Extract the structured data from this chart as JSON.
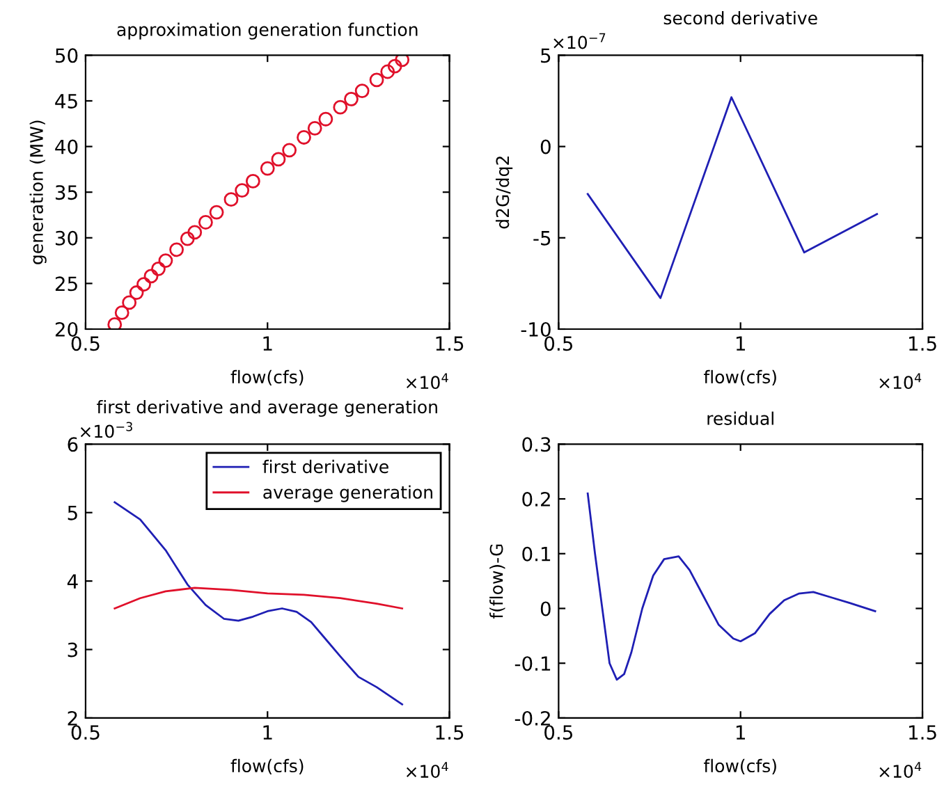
{
  "chart_data": [
    {
      "type": "scatter",
      "title": "approximation generation function",
      "xlabel": "flow(cfs)",
      "ylabel": "generation (MW)",
      "marker": "circle",
      "xlim": [
        0.5,
        1.5
      ],
      "ylim": [
        20,
        50
      ],
      "xticks": [
        0.5,
        1,
        1.5
      ],
      "yticks": [
        20,
        25,
        30,
        35,
        40,
        45,
        50
      ],
      "annotations": [
        "×10$^{4}$"
      ],
      "series": [
        {
          "color": "#e0102a",
          "x": [
            0.58,
            0.6,
            0.62,
            0.64,
            0.66,
            0.68,
            0.7,
            0.72,
            0.75,
            0.78,
            0.8,
            0.83,
            0.86,
            0.9,
            0.93,
            0.96,
            1.0,
            1.03,
            1.06,
            1.1,
            1.13,
            1.16,
            1.2,
            1.23,
            1.26,
            1.3,
            1.33,
            1.35,
            1.37
          ],
          "values": [
            20.5,
            21.8,
            22.9,
            24.0,
            24.9,
            25.8,
            26.6,
            27.5,
            28.7,
            29.9,
            30.6,
            31.7,
            32.8,
            34.2,
            35.2,
            36.2,
            37.6,
            38.6,
            39.6,
            41.0,
            42.0,
            43.0,
            44.3,
            45.2,
            46.1,
            47.3,
            48.2,
            48.8,
            49.5
          ]
        }
      ]
    },
    {
      "type": "line",
      "title": "second derivative",
      "xlabel": "flow(cfs)",
      "ylabel": "d2G/dq2",
      "xlim": [
        0.5,
        1.5
      ],
      "ylim": [
        -10,
        5
      ],
      "xticks": [
        0.5,
        1,
        1.5
      ],
      "yticks": [
        -10,
        -5,
        0,
        5
      ],
      "annotations": [
        "×10$^{4}$",
        "×10$^{−7}$"
      ],
      "series": [
        {
          "color": "#1f1fb4",
          "x": [
            0.58,
            0.78,
            0.975,
            1.175,
            1.375
          ],
          "values": [
            -2.6,
            -8.3,
            2.7,
            -5.8,
            -3.7
          ]
        }
      ]
    },
    {
      "type": "line",
      "title": "first derivative and average generation",
      "xlabel": "flow(cfs)",
      "legend": "top right",
      "xlim": [
        0.5,
        1.5
      ],
      "ylim": [
        2,
        6
      ],
      "xticks": [
        0.5,
        1,
        1.5
      ],
      "yticks": [
        2,
        3,
        4,
        5,
        6
      ],
      "annotations": [
        "×10$^{4}$",
        "×10$^{−3}$"
      ],
      "series": [
        {
          "name": "first derivative",
          "color": "#1f1fb4",
          "x": [
            0.58,
            0.65,
            0.72,
            0.78,
            0.83,
            0.88,
            0.92,
            0.96,
            1.0,
            1.04,
            1.08,
            1.12,
            1.16,
            1.2,
            1.25,
            1.3,
            1.37
          ],
          "values": [
            5.15,
            4.9,
            4.45,
            3.95,
            3.65,
            3.45,
            3.42,
            3.48,
            3.56,
            3.6,
            3.55,
            3.4,
            3.15,
            2.9,
            2.6,
            2.45,
            2.2
          ]
        },
        {
          "name": "average generation",
          "color": "#e0102a",
          "x": [
            0.58,
            0.65,
            0.72,
            0.8,
            0.9,
            1.0,
            1.1,
            1.2,
            1.3,
            1.37
          ],
          "values": [
            3.6,
            3.75,
            3.85,
            3.9,
            3.87,
            3.82,
            3.8,
            3.75,
            3.67,
            3.6
          ]
        }
      ]
    },
    {
      "type": "line",
      "title": "residual",
      "xlabel": "flow(cfs)",
      "ylabel": "f(flow)-G",
      "xlim": [
        0.5,
        1.5
      ],
      "ylim": [
        -0.2,
        0.3
      ],
      "xticks": [
        0.5,
        1,
        1.5
      ],
      "yticks": [
        -0.2,
        -0.1,
        0,
        0.1,
        0.2,
        0.3
      ],
      "annotations": [
        "×10$^{4}$"
      ],
      "series": [
        {
          "color": "#1f1fb4",
          "x": [
            0.58,
            0.6,
            0.62,
            0.64,
            0.66,
            0.68,
            0.7,
            0.73,
            0.76,
            0.79,
            0.83,
            0.86,
            0.9,
            0.94,
            0.98,
            1.0,
            1.04,
            1.08,
            1.12,
            1.16,
            1.2,
            1.25,
            1.3,
            1.37
          ],
          "values": [
            0.21,
            0.1,
            0.0,
            -0.1,
            -0.13,
            -0.12,
            -0.08,
            0.0,
            0.06,
            0.09,
            0.095,
            0.07,
            0.02,
            -0.03,
            -0.055,
            -0.06,
            -0.045,
            -0.01,
            0.015,
            0.027,
            0.03,
            0.02,
            0.01,
            -0.005
          ]
        }
      ]
    }
  ]
}
